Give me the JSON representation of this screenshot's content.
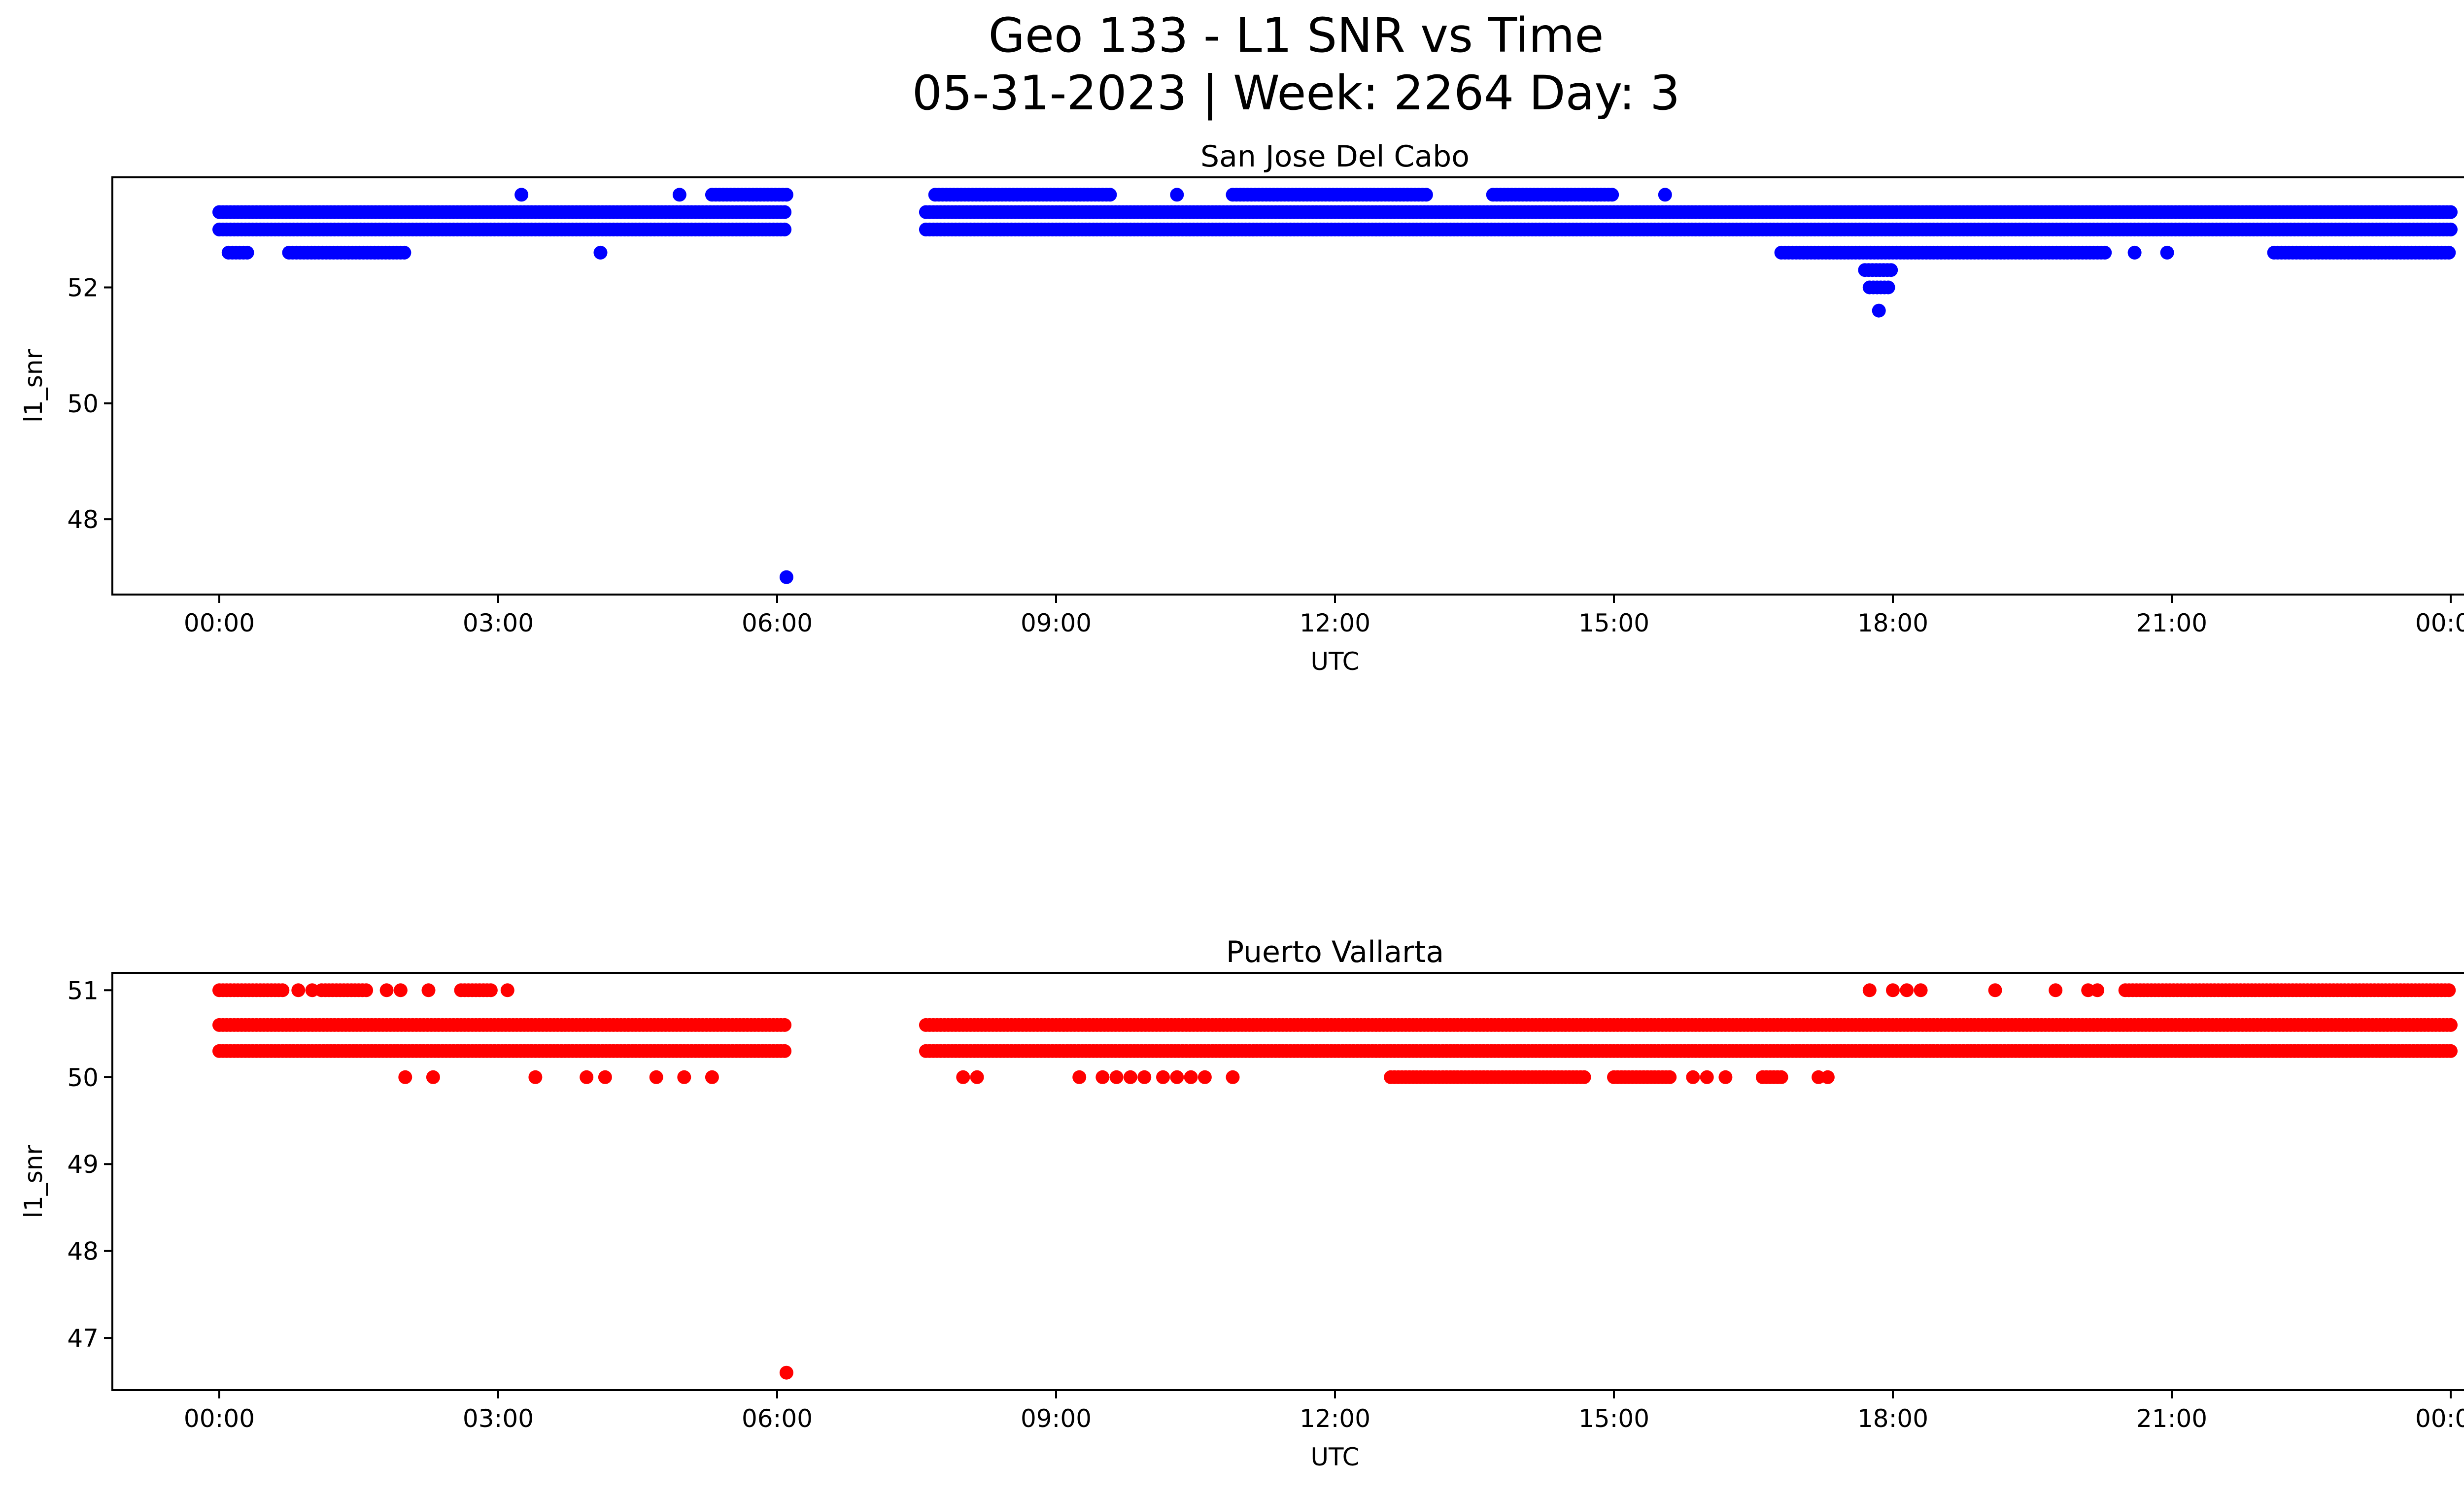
{
  "figure": {
    "title_line1": "Geo 133 - L1 SNR vs Time",
    "title_line2": "05-31-2023 | Week: 2264 Day: 3"
  },
  "chart_data": [
    {
      "type": "scatter",
      "title": "San Jose Del Cabo",
      "xlabel": "UTC",
      "ylabel": "l1_snr",
      "color": "#0000ff",
      "xlim_hours": [
        -1.15,
        25.15
      ],
      "ylim": [
        46.7,
        53.9
      ],
      "yticks": [
        48,
        50,
        52
      ],
      "xticks": [
        "00:00",
        "03:00",
        "06:00",
        "09:00",
        "12:00",
        "15:00",
        "18:00",
        "21:00",
        "00:00"
      ],
      "grid": false,
      "bands": [
        {
          "y": 53.3,
          "segments": [
            [
              0.0,
              6.1
            ],
            [
              7.6,
              24.0
            ]
          ]
        },
        {
          "y": 53.0,
          "segments": [
            [
              0.0,
              6.1
            ],
            [
              7.6,
              24.0
            ]
          ]
        },
        {
          "y": 52.6,
          "segments": [
            [
              0.1,
              0.3
            ],
            [
              0.75,
              2.0
            ],
            [
              16.8,
              20.3
            ],
            [
              22.1,
              24.0
            ]
          ]
        },
        {
          "y": 53.6,
          "segments": [
            [
              5.3,
              6.1
            ],
            [
              7.7,
              9.6
            ],
            [
              10.9,
              13.0
            ],
            [
              13.7,
              15.0
            ]
          ]
        },
        {
          "y": 52.3,
          "segments": [
            [
              17.7,
              18.0
            ]
          ]
        },
        {
          "y": 52.0,
          "segments": [
            [
              17.75,
              17.95
            ]
          ]
        }
      ],
      "points": [
        {
          "x": 3.25,
          "y": 53.6
        },
        {
          "x": 4.1,
          "y": 52.6
        },
        {
          "x": 4.95,
          "y": 53.6
        },
        {
          "x": 6.1,
          "y": 47.0
        },
        {
          "x": 10.3,
          "y": 53.6
        },
        {
          "x": 15.55,
          "y": 53.6
        },
        {
          "x": 20.6,
          "y": 52.6
        },
        {
          "x": 20.95,
          "y": 52.6
        },
        {
          "x": 17.85,
          "y": 51.6
        }
      ]
    },
    {
      "type": "scatter",
      "title": "Puerto Vallarta",
      "xlabel": "UTC",
      "ylabel": "l1_snr",
      "color": "#ff0000",
      "xlim_hours": [
        -1.15,
        25.15
      ],
      "ylim": [
        46.4,
        51.2
      ],
      "yticks": [
        47,
        48,
        49,
        50,
        51
      ],
      "xticks": [
        "00:00",
        "03:00",
        "06:00",
        "09:00",
        "12:00",
        "15:00",
        "18:00",
        "21:00",
        "00:00"
      ],
      "grid": false,
      "bands": [
        {
          "y": 51.0,
          "segments": [
            [
              0.0,
              0.7
            ],
            [
              1.1,
              1.6
            ],
            [
              2.6,
              2.95
            ],
            [
              20.5,
              24.0
            ]
          ]
        },
        {
          "y": 50.6,
          "segments": [
            [
              0.0,
              6.1
            ],
            [
              7.6,
              24.0
            ]
          ]
        },
        {
          "y": 50.3,
          "segments": [
            [
              0.0,
              6.1
            ],
            [
              7.6,
              24.0
            ]
          ]
        },
        {
          "y": 50.0,
          "segments": [
            [
              12.6,
              14.7
            ],
            [
              15.0,
              15.6
            ],
            [
              16.6,
              16.8
            ]
          ]
        }
      ],
      "points": [
        {
          "x": 0.85,
          "y": 51.0
        },
        {
          "x": 1.0,
          "y": 51.0
        },
        {
          "x": 1.8,
          "y": 51.0
        },
        {
          "x": 1.95,
          "y": 51.0
        },
        {
          "x": 2.25,
          "y": 51.0
        },
        {
          "x": 3.1,
          "y": 51.0
        },
        {
          "x": 2.0,
          "y": 50.0
        },
        {
          "x": 2.3,
          "y": 50.0
        },
        {
          "x": 3.4,
          "y": 50.0
        },
        {
          "x": 3.95,
          "y": 50.0
        },
        {
          "x": 4.15,
          "y": 50.0
        },
        {
          "x": 4.7,
          "y": 50.0
        },
        {
          "x": 5.0,
          "y": 50.0
        },
        {
          "x": 5.3,
          "y": 50.0
        },
        {
          "x": 6.1,
          "y": 46.6
        },
        {
          "x": 8.0,
          "y": 50.0
        },
        {
          "x": 8.15,
          "y": 50.0
        },
        {
          "x": 9.25,
          "y": 50.0
        },
        {
          "x": 9.5,
          "y": 50.0
        },
        {
          "x": 9.65,
          "y": 50.0
        },
        {
          "x": 9.8,
          "y": 50.0
        },
        {
          "x": 9.95,
          "y": 50.0
        },
        {
          "x": 10.15,
          "y": 50.0
        },
        {
          "x": 10.3,
          "y": 50.0
        },
        {
          "x": 10.45,
          "y": 50.0
        },
        {
          "x": 10.6,
          "y": 50.0
        },
        {
          "x": 10.9,
          "y": 50.0
        },
        {
          "x": 15.85,
          "y": 50.0
        },
        {
          "x": 16.0,
          "y": 50.0
        },
        {
          "x": 16.2,
          "y": 50.0
        },
        {
          "x": 17.2,
          "y": 50.0
        },
        {
          "x": 17.3,
          "y": 50.0
        },
        {
          "x": 17.75,
          "y": 51.0
        },
        {
          "x": 18.0,
          "y": 51.0
        },
        {
          "x": 18.15,
          "y": 51.0
        },
        {
          "x": 18.3,
          "y": 51.0
        },
        {
          "x": 19.1,
          "y": 51.0
        },
        {
          "x": 19.75,
          "y": 51.0
        },
        {
          "x": 20.1,
          "y": 51.0
        },
        {
          "x": 20.2,
          "y": 51.0
        }
      ]
    }
  ]
}
